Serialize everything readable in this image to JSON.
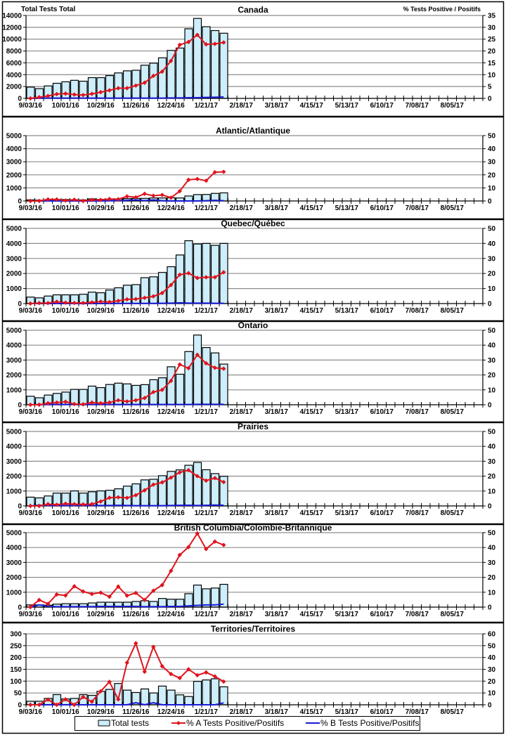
{
  "page": {
    "left_axis_title": "Total Tests Total",
    "right_axis_title": "% Tests Positive / Positifs"
  },
  "legend": {
    "total": "Total tests",
    "flu_a": "% A Tests Positive/Positifs",
    "flu_b": "% B Tests Positive/Positifs"
  },
  "colors": {
    "bar_fill": "#cdeefa",
    "bar_stroke": "#000000",
    "flu_a": "#e0141e",
    "flu_b": "#1a1ad6",
    "grid": "#8c8c8c"
  },
  "chart_data": [
    {
      "type": "bar",
      "title": "Canada",
      "xlabel": "",
      "ylabel": "Total Tests Total",
      "y2label": "% Tests Positive / Positifs",
      "x_tick_labels": [
        "9/03/16",
        "10/01/16",
        "10/29/16",
        "11/26/16",
        "12/24/16",
        "1/21/17",
        "2/18/17",
        "3/18/17",
        "4/15/17",
        "5/13/17",
        "6/10/17",
        "7/08/17",
        "8/05/17"
      ],
      "weeks": 52,
      "ylim": [
        0,
        14000
      ],
      "yticks": [
        0,
        2000,
        4000,
        6000,
        8000,
        10000,
        12000,
        14000
      ],
      "y2lim": [
        0,
        35
      ],
      "y2ticks": [
        0,
        5,
        10,
        15,
        20,
        25,
        30,
        35
      ],
      "series": [
        {
          "name": "Total tests",
          "axis": "left",
          "kind": "bar",
          "values": [
            1900,
            1650,
            2100,
            2550,
            2800,
            3050,
            2900,
            3500,
            3500,
            3850,
            4300,
            4650,
            4750,
            5600,
            5950,
            6850,
            8100,
            8500,
            11750,
            13500,
            12100,
            11450,
            11000
          ]
        },
        {
          "name": "% A Tests Positive/Positifs",
          "axis": "right",
          "kind": "line",
          "values": [
            0,
            0.5,
            1,
            1.8,
            2,
            1.6,
            1.4,
            1.9,
            2.6,
            3.4,
            4.3,
            4.3,
            5.4,
            6.6,
            9.5,
            11.3,
            15.8,
            22.6,
            23.8,
            26.8,
            22.8,
            23,
            23.6
          ]
        },
        {
          "name": "% B Tests Positive/Positifs",
          "axis": "right",
          "kind": "line",
          "values": [
            0,
            0.1,
            0.1,
            0.1,
            0.1,
            0.1,
            0.1,
            0.1,
            0.1,
            0.1,
            0.1,
            0.1,
            0.1,
            0.1,
            0.1,
            0.1,
            0.2,
            0.2,
            0.3,
            0.3,
            0.4,
            0.5,
            0.6
          ]
        }
      ]
    },
    {
      "type": "bar",
      "title": "Atlantic/Atlantique",
      "ylim": [
        0,
        5000
      ],
      "yticks": [
        0,
        1000,
        2000,
        3000,
        4000,
        5000
      ],
      "y2lim": [
        0,
        50
      ],
      "y2ticks": [
        0,
        10,
        20,
        30,
        40,
        50
      ],
      "x_tick_labels": [
        "9/03/16",
        "10/01/16",
        "10/29/16",
        "11/26/16",
        "12/24/16",
        "1/21/17",
        "2/18/17",
        "3/18/17",
        "4/15/17",
        "5/13/17",
        "6/10/17",
        "7/08/17",
        "8/05/17"
      ],
      "weeks": 52,
      "series": [
        {
          "name": "Total tests",
          "axis": "left",
          "kind": "bar",
          "values": [
            80,
            60,
            100,
            110,
            110,
            100,
            80,
            160,
            120,
            140,
            160,
            180,
            200,
            200,
            230,
            230,
            250,
            230,
            380,
            490,
            500,
            580,
            620
          ]
        },
        {
          "name": "% A Tests Positive/Positifs",
          "axis": "right",
          "kind": "line",
          "values": [
            0,
            0,
            1.2,
            1.2,
            0.3,
            1,
            0,
            0.8,
            0.8,
            1.5,
            1.3,
            3.5,
            2.8,
            5.5,
            4,
            4.6,
            2.5,
            7.5,
            16.2,
            16.8,
            15.5,
            22,
            22.3
          ]
        },
        {
          "name": "% B Tests Positive/Positifs",
          "axis": "right",
          "kind": "line",
          "values": [
            0,
            0,
            0,
            0,
            0,
            0,
            0,
            0,
            0,
            0.2,
            0.3,
            0.5,
            0.8,
            0.3,
            0.8,
            0.2,
            0,
            0,
            0,
            0,
            0.2,
            0.5,
            0.2
          ]
        }
      ]
    },
    {
      "type": "bar",
      "title": "Quebec/Québec",
      "ylim": [
        0,
        5000
      ],
      "yticks": [
        0,
        1000,
        2000,
        3000,
        4000,
        5000
      ],
      "y2lim": [
        0,
        50
      ],
      "y2ticks": [
        0,
        10,
        20,
        30,
        40,
        50
      ],
      "x_tick_labels": [
        "9/03/16",
        "10/01/16",
        "10/29/16",
        "11/26/16",
        "12/24/16",
        "1/21/17",
        "2/18/17",
        "3/18/17",
        "4/15/17",
        "5/13/17",
        "6/10/17",
        "7/08/17",
        "8/05/17"
      ],
      "weeks": 52,
      "series": [
        {
          "name": "Total tests",
          "axis": "left",
          "kind": "bar",
          "values": [
            430,
            380,
            500,
            580,
            580,
            580,
            620,
            760,
            720,
            900,
            1050,
            1220,
            1260,
            1720,
            1780,
            2070,
            2450,
            3230,
            4180,
            3960,
            4000,
            3870,
            4000
          ]
        },
        {
          "name": "% A Tests Positive/Positifs",
          "axis": "right",
          "kind": "line",
          "values": [
            0,
            0.3,
            0.3,
            1.2,
            0.6,
            0.4,
            0.4,
            0.8,
            1.3,
            1,
            1.8,
            2.8,
            3,
            3.8,
            4.8,
            7,
            12.3,
            19.2,
            20.2,
            17,
            17.5,
            17.5,
            20.8
          ]
        },
        {
          "name": "% B Tests Positive/Positifs",
          "axis": "right",
          "kind": "line",
          "values": [
            0,
            0,
            0,
            0,
            0,
            0,
            0,
            0,
            0,
            0,
            0.1,
            0.1,
            0.1,
            0.1,
            0.1,
            0.2,
            0.3,
            0.5,
            0.3,
            0.3,
            0.3,
            0.2,
            0.2
          ]
        }
      ]
    },
    {
      "type": "bar",
      "title": "Ontario",
      "ylim": [
        0,
        5000
      ],
      "yticks": [
        0,
        1000,
        2000,
        3000,
        4000,
        5000
      ],
      "y2lim": [
        0,
        50
      ],
      "y2ticks": [
        0,
        10,
        20,
        30,
        40,
        50
      ],
      "x_tick_labels": [
        "9/03/16",
        "10/01/16",
        "10/29/16",
        "11/26/16",
        "12/24/16",
        "1/21/17",
        "2/18/17",
        "3/18/17",
        "4/15/17",
        "5/13/17",
        "6/10/17",
        "7/08/17",
        "8/05/17"
      ],
      "weeks": 52,
      "series": [
        {
          "name": "Total tests",
          "axis": "left",
          "kind": "bar",
          "values": [
            570,
            470,
            650,
            760,
            850,
            1030,
            1030,
            1250,
            1150,
            1360,
            1450,
            1400,
            1300,
            1350,
            1680,
            1810,
            2550,
            2050,
            3570,
            4680,
            3840,
            3480,
            2730
          ]
        },
        {
          "name": "% A Tests Positive/Positifs",
          "axis": "right",
          "kind": "line",
          "values": [
            0,
            0,
            1,
            1.5,
            2,
            0.5,
            0.3,
            1.5,
            1,
            1.5,
            3,
            2.2,
            3,
            4.5,
            8.5,
            10,
            16,
            27,
            24.5,
            33.5,
            27.8,
            24.8,
            24.2
          ]
        },
        {
          "name": "% B Tests Positive/Positifs",
          "axis": "right",
          "kind": "line",
          "values": [
            0,
            0.2,
            0.2,
            0.2,
            0.2,
            0.2,
            0.2,
            0.2,
            0.2,
            0.2,
            0.2,
            0.2,
            0.2,
            0.2,
            0.2,
            0.2,
            0.2,
            0.2,
            0.2,
            0.3,
            0.3,
            0.3,
            0.3
          ]
        }
      ]
    },
    {
      "type": "bar",
      "title": "Prairies",
      "ylim": [
        0,
        5000
      ],
      "yticks": [
        0,
        1000,
        2000,
        3000,
        4000,
        5000
      ],
      "y2lim": [
        0,
        50
      ],
      "y2ticks": [
        0,
        10,
        20,
        30,
        40,
        50
      ],
      "x_tick_labels": [
        "9/03/16",
        "10/01/16",
        "10/29/16",
        "11/26/16",
        "12/24/16",
        "1/21/17",
        "2/18/17",
        "3/18/17",
        "4/15/17",
        "5/13/17",
        "6/10/17",
        "7/08/17",
        "8/05/17"
      ],
      "weeks": 52,
      "series": [
        {
          "name": "Total tests",
          "axis": "left",
          "kind": "bar",
          "values": [
            590,
            540,
            670,
            860,
            860,
            1010,
            860,
            950,
            1010,
            1050,
            1150,
            1330,
            1480,
            1750,
            1790,
            2030,
            2320,
            2420,
            2730,
            2920,
            2430,
            2170,
            1990
          ]
        },
        {
          "name": "% A Tests Positive/Positifs",
          "axis": "right",
          "kind": "line",
          "values": [
            0,
            0,
            1.2,
            0.8,
            1.5,
            1.2,
            1,
            1.2,
            3,
            5.5,
            5.8,
            5.4,
            7.2,
            10.5,
            14.3,
            15.8,
            19,
            22.5,
            24,
            20,
            17,
            18.7,
            16
          ]
        },
        {
          "name": "% B Tests Positive/Positifs",
          "axis": "right",
          "kind": "line",
          "values": [
            0,
            0.5,
            0.3,
            0.3,
            0.3,
            0.3,
            0.3,
            0.3,
            0.3,
            0.3,
            0.4,
            0.3,
            0.2,
            0.2,
            0.2,
            0.2,
            0.3,
            0.4,
            0.5,
            0.3,
            0.4,
            0.6,
            0.5
          ]
        }
      ]
    },
    {
      "type": "bar",
      "title": "British Columbia/Colombie-Britannique",
      "ylim": [
        0,
        5000
      ],
      "yticks": [
        0,
        1000,
        2000,
        3000,
        4000,
        5000
      ],
      "y2lim": [
        0,
        50
      ],
      "y2ticks": [
        0,
        10,
        20,
        30,
        40,
        50
      ],
      "x_tick_labels": [
        "9/03/16",
        "10/01/16",
        "10/29/16",
        "11/26/16",
        "12/24/16",
        "1/21/17",
        "2/18/17",
        "3/18/17",
        "4/15/17",
        "5/13/17",
        "6/10/17",
        "7/08/17",
        "8/05/17"
      ],
      "weeks": 52,
      "series": [
        {
          "name": "Total tests",
          "axis": "left",
          "kind": "bar",
          "values": [
            150,
            150,
            130,
            200,
            230,
            230,
            230,
            280,
            330,
            330,
            330,
            330,
            380,
            430,
            380,
            580,
            530,
            530,
            900,
            1480,
            1230,
            1280,
            1530
          ]
        },
        {
          "name": "% A Tests Positive/Positifs",
          "axis": "right",
          "kind": "line",
          "values": [
            0,
            4.8,
            2.2,
            8.5,
            7.8,
            14,
            10.5,
            8.8,
            9.7,
            7,
            13.8,
            7.7,
            9.5,
            4.8,
            11,
            14.8,
            24.3,
            35,
            40.3,
            49.5,
            39,
            44,
            41.7
          ]
        },
        {
          "name": "% B Tests Positive/Positifs",
          "axis": "right",
          "kind": "line",
          "values": [
            0,
            1.5,
            0.5,
            0.3,
            0.3,
            0.3,
            0.3,
            0.3,
            0.5,
            0.5,
            0.5,
            0.5,
            0.5,
            0.3,
            0.3,
            0.3,
            0.5,
            0.5,
            0.8,
            1.2,
            1.5,
            1.5,
            2
          ]
        }
      ]
    },
    {
      "type": "bar",
      "title": "Territories/Territoires",
      "ylim": [
        0,
        300
      ],
      "yticks": [
        0,
        50,
        100,
        150,
        200,
        250,
        300
      ],
      "y2lim": [
        0,
        60
      ],
      "y2ticks": [
        0,
        10,
        20,
        30,
        40,
        50,
        60
      ],
      "x_tick_labels": [
        "9/03/16",
        "10/01/16",
        "10/29/16",
        "11/26/16",
        "12/24/16",
        "1/21/17",
        "2/18/17",
        "3/18/17",
        "4/15/17",
        "5/13/17",
        "6/10/17",
        "7/08/17",
        "8/05/17"
      ],
      "weeks": 52,
      "series": [
        {
          "name": "Total tests",
          "axis": "left",
          "kind": "bar",
          "values": [
            15,
            15,
            27,
            43,
            25,
            27,
            43,
            40,
            57,
            65,
            90,
            62,
            52,
            67,
            50,
            79,
            62,
            42,
            35,
            99,
            105,
            110,
            76
          ]
        },
        {
          "name": "% A Tests Positive/Positifs",
          "axis": "right",
          "kind": "line",
          "values": [
            0,
            0,
            4.4,
            0,
            4.6,
            0,
            6.6,
            2.6,
            11.4,
            19.4,
            4.6,
            35.6,
            52,
            28,
            49,
            32.6,
            26,
            22.6,
            30,
            25,
            27.4,
            24,
            19.6
          ]
        },
        {
          "name": "% B Tests Positive/Positifs",
          "axis": "right",
          "kind": "line",
          "values": [
            0,
            0,
            0,
            0,
            0,
            0,
            0,
            0,
            0,
            0,
            0,
            0,
            1.8,
            0,
            1.8,
            0,
            0,
            0,
            0,
            0,
            0,
            0,
            1.6
          ]
        }
      ]
    }
  ]
}
